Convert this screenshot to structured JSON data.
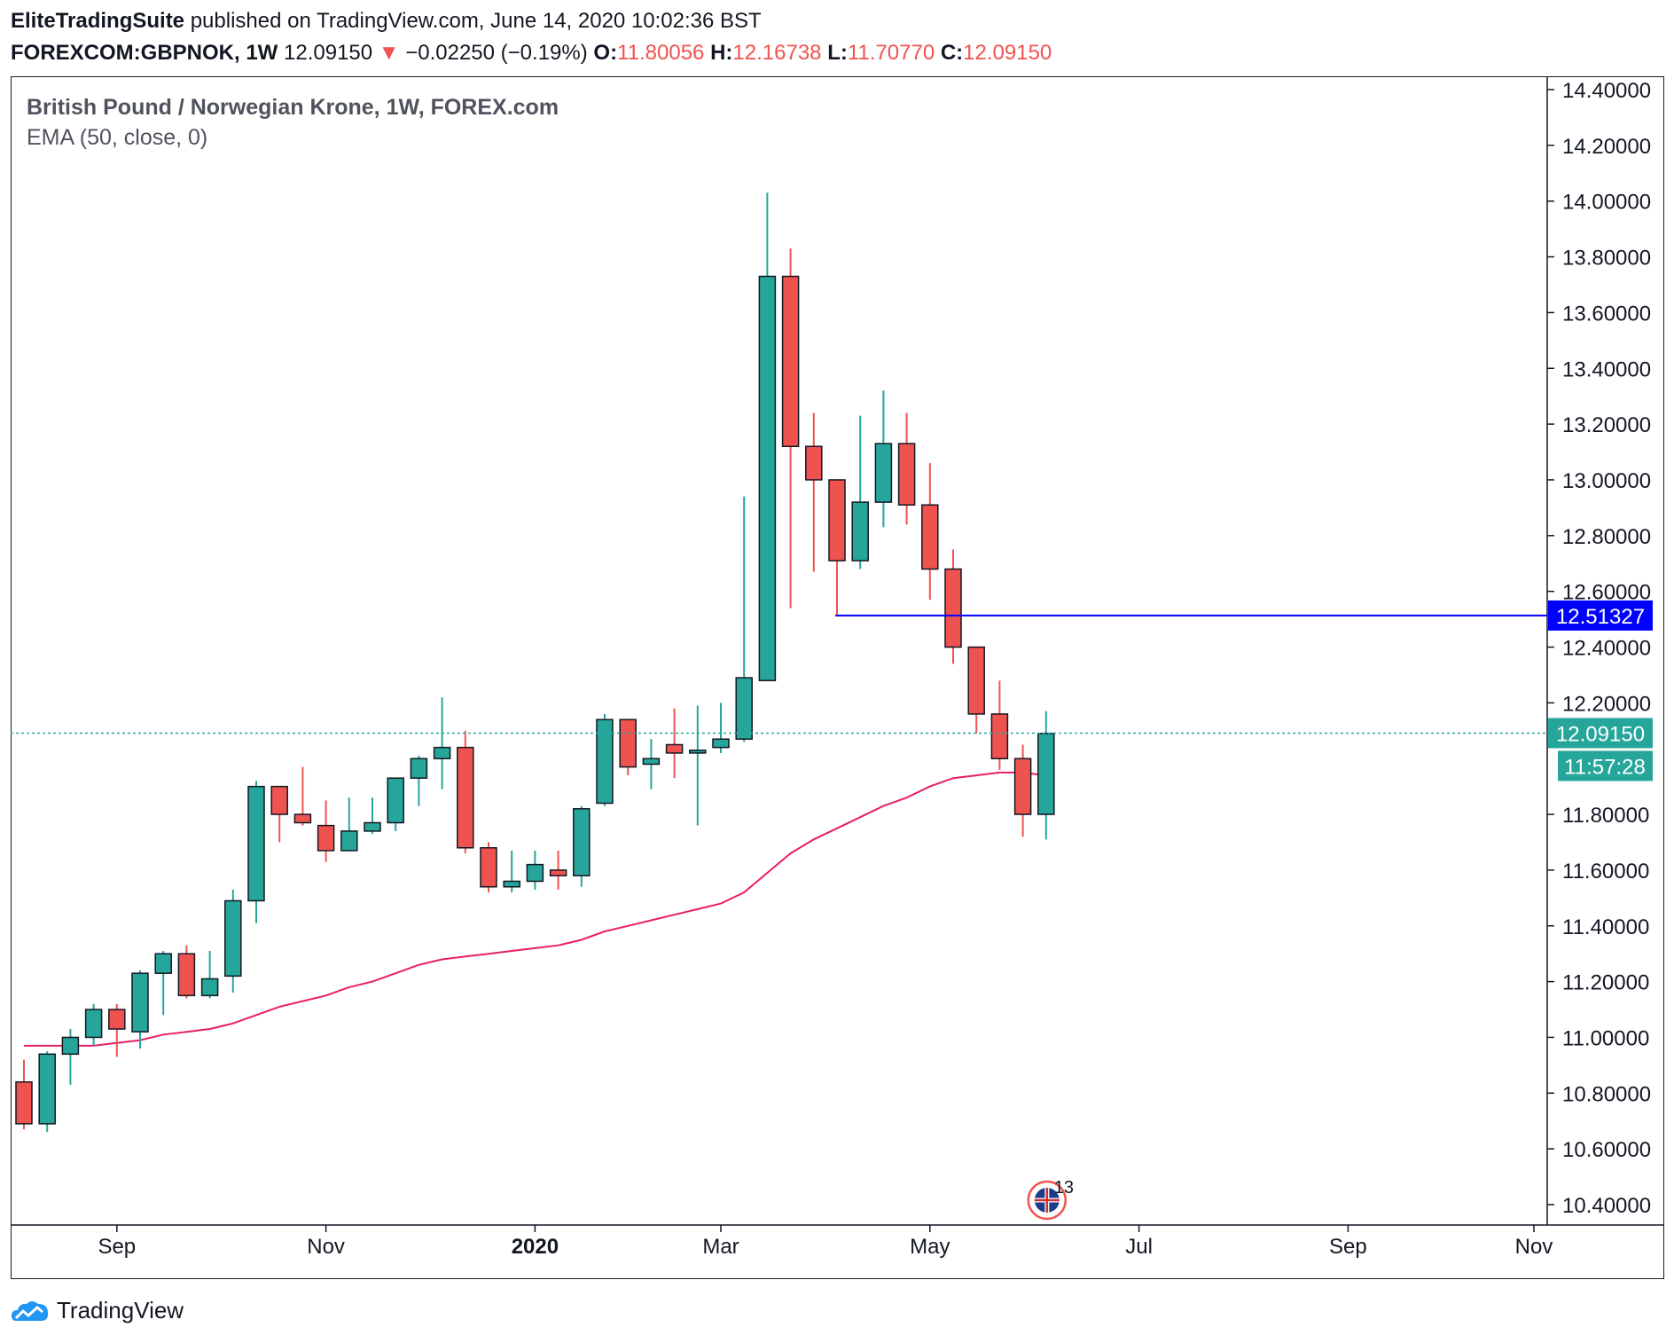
{
  "header": {
    "publisher": "EliteTradingSuite",
    "published_text": "published on TradingView.com, June 14, 2020 10:02:36 BST",
    "symbol": "FOREXCOM:GBPNOK, 1W",
    "last": "12.09150",
    "change_arrow": "▼",
    "change": "−0.02250 (−0.19%)",
    "o_label": "O:",
    "o_value": "11.80056",
    "h_label": "H:",
    "h_value": "12.16738",
    "l_label": "L:",
    "l_value": "11.70770",
    "c_label": "C:",
    "c_value": "12.09150"
  },
  "legend": {
    "title": "British Pound / Norwegian Krone, 1W, FOREX.com",
    "indicator": "EMA (50, close, 0)"
  },
  "footer": {
    "brand": "TradingView",
    "icon": "tradingview-cloud-logo"
  },
  "colors": {
    "up": "#26a69a",
    "down": "#ef5350",
    "ema": "#e91e63",
    "level_line": "#0000ff",
    "price_line": "#26a69a"
  },
  "chart_data": {
    "type": "candlestick",
    "ylim": [
      10.34,
      14.44
    ],
    "y_ticks": [
      "14.40000",
      "14.20000",
      "14.00000",
      "13.80000",
      "13.60000",
      "13.40000",
      "13.20000",
      "13.00000",
      "12.80000",
      "12.60000",
      "12.40000",
      "12.20000",
      "11.80000",
      "11.60000",
      "11.40000",
      "11.20000",
      "11.00000",
      "10.80000",
      "10.60000",
      "10.40000"
    ],
    "y_tick_values": [
      14.4,
      14.2,
      14.0,
      13.8,
      13.6,
      13.4,
      13.2,
      13.0,
      12.8,
      12.6,
      12.4,
      12.2,
      11.8,
      11.6,
      11.4,
      11.2,
      11.0,
      10.8,
      10.6,
      10.4
    ],
    "x_labels": [
      {
        "label": "Sep",
        "bar": 4,
        "bold": false
      },
      {
        "label": "Nov",
        "bar": 13,
        "bold": false
      },
      {
        "label": "2020",
        "bar": 22,
        "bold": true
      },
      {
        "label": "Mar",
        "bar": 30,
        "bold": false
      },
      {
        "label": "May",
        "bar": 39,
        "bold": false
      },
      {
        "label": "Jul",
        "bar": 48,
        "bold": false
      },
      {
        "label": "Sep",
        "bar": 57,
        "bold": false
      },
      {
        "label": "Nov",
        "bar": 65,
        "bold": false
      }
    ],
    "candles": [
      {
        "o": 10.84,
        "h": 10.92,
        "l": 10.67,
        "c": 10.69
      },
      {
        "o": 10.69,
        "h": 10.95,
        "l": 10.66,
        "c": 10.94
      },
      {
        "o": 10.94,
        "h": 11.03,
        "l": 10.83,
        "c": 11.0
      },
      {
        "o": 11.0,
        "h": 11.12,
        "l": 10.97,
        "c": 11.1
      },
      {
        "o": 11.1,
        "h": 11.12,
        "l": 10.93,
        "c": 11.03
      },
      {
        "o": 11.02,
        "h": 11.24,
        "l": 10.96,
        "c": 11.23
      },
      {
        "o": 11.23,
        "h": 11.31,
        "l": 11.08,
        "c": 11.3
      },
      {
        "o": 11.3,
        "h": 11.33,
        "l": 11.14,
        "c": 11.15
      },
      {
        "o": 11.15,
        "h": 11.31,
        "l": 11.14,
        "c": 11.21
      },
      {
        "o": 11.22,
        "h": 11.53,
        "l": 11.16,
        "c": 11.49
      },
      {
        "o": 11.49,
        "h": 11.92,
        "l": 11.41,
        "c": 11.9
      },
      {
        "o": 11.9,
        "h": 11.9,
        "l": 11.7,
        "c": 11.8
      },
      {
        "o": 11.8,
        "h": 11.97,
        "l": 11.76,
        "c": 11.77
      },
      {
        "o": 11.76,
        "h": 11.85,
        "l": 11.63,
        "c": 11.67
      },
      {
        "o": 11.67,
        "h": 11.86,
        "l": 11.67,
        "c": 11.74
      },
      {
        "o": 11.74,
        "h": 11.86,
        "l": 11.73,
        "c": 11.77
      },
      {
        "o": 11.77,
        "h": 11.93,
        "l": 11.74,
        "c": 11.93
      },
      {
        "o": 11.93,
        "h": 12.01,
        "l": 11.83,
        "c": 12.0
      },
      {
        "o": 12.0,
        "h": 12.22,
        "l": 11.89,
        "c": 12.04
      },
      {
        "o": 12.04,
        "h": 12.1,
        "l": 11.66,
        "c": 11.68
      },
      {
        "o": 11.68,
        "h": 11.7,
        "l": 11.52,
        "c": 11.54
      },
      {
        "o": 11.54,
        "h": 11.67,
        "l": 11.52,
        "c": 11.56
      },
      {
        "o": 11.56,
        "h": 11.67,
        "l": 11.53,
        "c": 11.62
      },
      {
        "o": 11.6,
        "h": 11.67,
        "l": 11.53,
        "c": 11.58
      },
      {
        "o": 11.58,
        "h": 11.83,
        "l": 11.54,
        "c": 11.82
      },
      {
        "o": 11.84,
        "h": 12.16,
        "l": 11.83,
        "c": 12.14
      },
      {
        "o": 12.14,
        "h": 12.14,
        "l": 11.94,
        "c": 11.97
      },
      {
        "o": 11.98,
        "h": 12.07,
        "l": 11.89,
        "c": 12.0
      },
      {
        "o": 12.05,
        "h": 12.18,
        "l": 11.93,
        "c": 12.02
      },
      {
        "o": 12.02,
        "h": 12.19,
        "l": 11.76,
        "c": 12.03
      },
      {
        "o": 12.04,
        "h": 12.2,
        "l": 12.02,
        "c": 12.07
      },
      {
        "o": 12.07,
        "h": 12.94,
        "l": 12.06,
        "c": 12.29
      },
      {
        "o": 12.28,
        "h": 14.03,
        "l": 12.28,
        "c": 13.73
      },
      {
        "o": 13.73,
        "h": 13.83,
        "l": 12.54,
        "c": 13.12
      },
      {
        "o": 13.12,
        "h": 13.24,
        "l": 12.67,
        "c": 13.0
      },
      {
        "o": 13.0,
        "h": 13.0,
        "l": 12.51,
        "c": 12.71
      },
      {
        "o": 12.71,
        "h": 13.23,
        "l": 12.68,
        "c": 12.92
      },
      {
        "o": 12.92,
        "h": 13.32,
        "l": 12.83,
        "c": 13.13
      },
      {
        "o": 13.13,
        "h": 13.24,
        "l": 12.84,
        "c": 12.91
      },
      {
        "o": 12.91,
        "h": 13.06,
        "l": 12.57,
        "c": 12.68
      },
      {
        "o": 12.68,
        "h": 12.75,
        "l": 12.34,
        "c": 12.4
      },
      {
        "o": 12.4,
        "h": 12.4,
        "l": 12.09,
        "c": 12.16
      },
      {
        "o": 12.16,
        "h": 12.28,
        "l": 11.96,
        "c": 12.0
      },
      {
        "o": 12.0,
        "h": 12.05,
        "l": 11.72,
        "c": 11.8
      },
      {
        "o": 11.8,
        "h": 12.17,
        "l": 11.71,
        "c": 12.09
      }
    ],
    "ema": [
      10.97,
      10.97,
      10.97,
      10.97,
      10.98,
      10.99,
      11.01,
      11.02,
      11.03,
      11.05,
      11.08,
      11.11,
      11.13,
      11.15,
      11.18,
      11.2,
      11.23,
      11.26,
      11.28,
      11.29,
      11.3,
      11.31,
      11.32,
      11.33,
      11.35,
      11.38,
      11.4,
      11.42,
      11.44,
      11.46,
      11.48,
      11.52,
      11.59,
      11.66,
      11.71,
      11.75,
      11.79,
      11.83,
      11.86,
      11.9,
      11.93,
      11.94,
      11.95,
      11.95,
      11.94
    ],
    "level_line": {
      "value": 12.51327,
      "label": "12.51327",
      "start_bar": 35
    },
    "last_price": {
      "value": 12.0915,
      "label": "12.09150",
      "countdown": "11:57:28"
    },
    "event_marker": {
      "bar": 44,
      "label": "13"
    }
  }
}
